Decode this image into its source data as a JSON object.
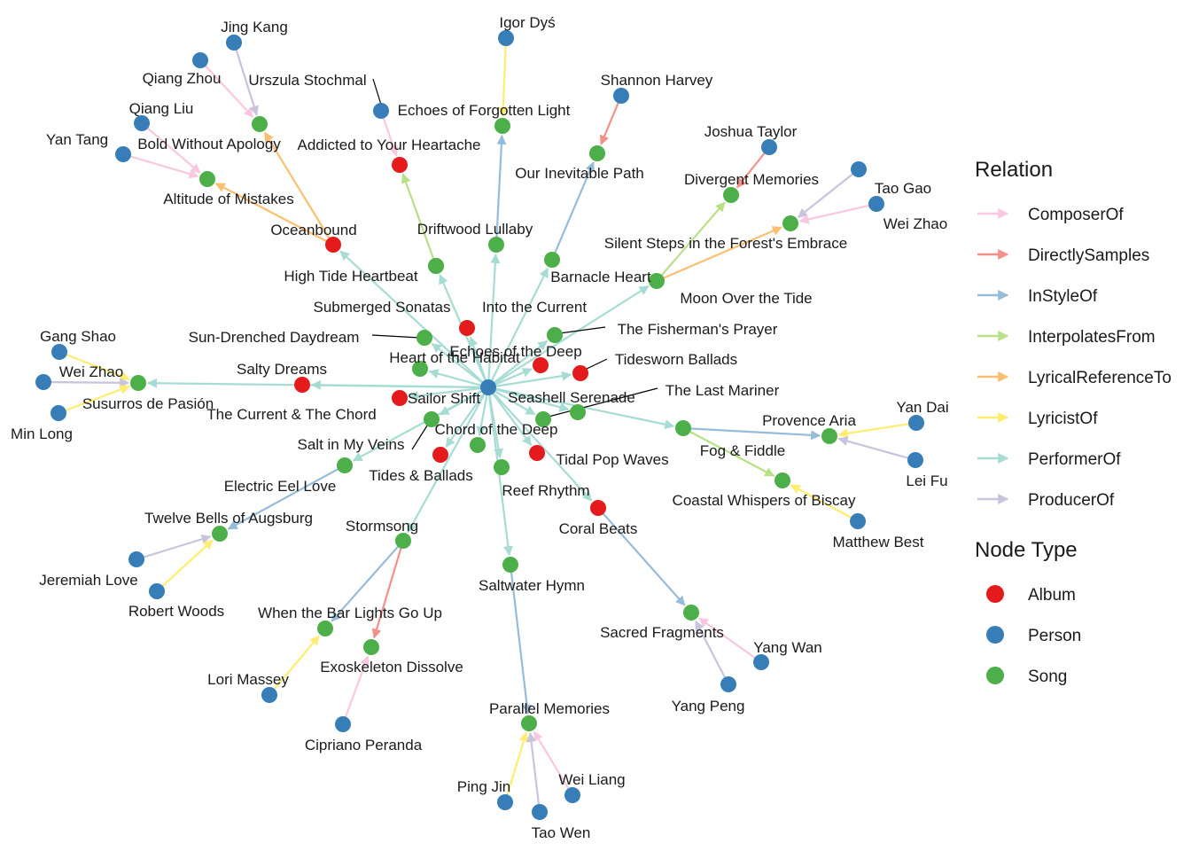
{
  "legend": {
    "relation_title": "Relation",
    "node_type_title": "Node Type",
    "relations": [
      {
        "name": "ComposerOf",
        "color": "#f9c8e0"
      },
      {
        "name": "DirectlySamples",
        "color": "#f4908a"
      },
      {
        "name": "InStyleOf",
        "color": "#97bcd9"
      },
      {
        "name": "InterpolatesFrom",
        "color": "#b8e186"
      },
      {
        "name": "LyricalReferenceTo",
        "color": "#fdbf6f"
      },
      {
        "name": "LyricistOf",
        "color": "#ffed6f"
      },
      {
        "name": "PerformerOf",
        "color": "#a6dcd4"
      },
      {
        "name": "ProducerOf",
        "color": "#c8c4de"
      }
    ],
    "node_types": [
      {
        "name": "Album",
        "color": "#e41a1c"
      },
      {
        "name": "Person",
        "color": "#377eb8"
      },
      {
        "name": "Song",
        "color": "#4daf4a"
      }
    ]
  },
  "nodes": [
    {
      "id": "sailor_shift",
      "label": "Sailor Shift",
      "type": "Person"
    },
    {
      "id": "oceanbound",
      "label": "Oceanbound",
      "type": "Album"
    },
    {
      "id": "altitude",
      "label": "Altitude of Mistakes",
      "type": "Song"
    },
    {
      "id": "bold",
      "label": "Bold Without Apology",
      "type": "Song"
    },
    {
      "id": "yan_tang",
      "label": "Yan Tang",
      "type": "Person"
    },
    {
      "id": "qiang_liu",
      "label": "Qiang Liu",
      "type": "Person"
    },
    {
      "id": "qiang_zhou",
      "label": "Qiang Zhou",
      "type": "Person"
    },
    {
      "id": "jing_kang",
      "label": "Jing Kang",
      "type": "Person"
    },
    {
      "id": "addicted",
      "label": "Addicted to Your Heartache",
      "type": "Album"
    },
    {
      "id": "urszula",
      "label": "Urszula Stochmal",
      "type": "Person"
    },
    {
      "id": "driftwood",
      "label": "Driftwood Lullaby",
      "type": "Song"
    },
    {
      "id": "echoes_forgotten",
      "label": "Echoes of Forgotten Light",
      "type": "Song"
    },
    {
      "id": "igor",
      "label": "Igor Dyś",
      "type": "Person"
    },
    {
      "id": "into_current",
      "label": "Into the Current",
      "type": "Song"
    },
    {
      "id": "our_inevitable",
      "label": "Our Inevitable Path",
      "type": "Song"
    },
    {
      "id": "shannon",
      "label": "Shannon Harvey",
      "type": "Person"
    },
    {
      "id": "barnacle",
      "label": "Barnacle Heart",
      "type": "Song"
    },
    {
      "id": "divergent",
      "label": "Divergent Memories",
      "type": "Song"
    },
    {
      "id": "joshua",
      "label": "Joshua Taylor",
      "type": "Person"
    },
    {
      "id": "moon_tide",
      "label": "Moon Over the Tide",
      "type": "Song"
    },
    {
      "id": "silent_steps",
      "label": "Silent Steps in the Forest's Embrace",
      "type": "Song"
    },
    {
      "id": "tao_gao",
      "label": "Tao Gao",
      "type": "Person"
    },
    {
      "id": "wei_zhao_r",
      "label": "Wei Zhao",
      "type": "Person"
    },
    {
      "id": "high_tide",
      "label": "High Tide Heartbeat",
      "type": "Song"
    },
    {
      "id": "submerged",
      "label": "Submerged Sonatas",
      "type": "Album"
    },
    {
      "id": "sun_drenched",
      "label": "Sun-Drenched Daydream",
      "type": "Song"
    },
    {
      "id": "fishermans",
      "label": "The Fisherman's Prayer",
      "type": "Song"
    },
    {
      "id": "echoes_deep",
      "label": "Echoes of the Deep",
      "type": "Album"
    },
    {
      "id": "heart_habitat",
      "label": "Heart of the Habitat",
      "type": "Song"
    },
    {
      "id": "tidesworn",
      "label": "Tidesworn Ballads",
      "type": "Album"
    },
    {
      "id": "salty_dreams",
      "label": "Salty Dreams",
      "type": "Album"
    },
    {
      "id": "susurros",
      "label": "Susurros de Pasión",
      "type": "Song"
    },
    {
      "id": "gang_shao",
      "label": "Gang Shao",
      "type": "Person"
    },
    {
      "id": "wei_zhao_l",
      "label": "Wei Zhao",
      "type": "Person"
    },
    {
      "id": "min_long",
      "label": "Min Long",
      "type": "Person"
    },
    {
      "id": "current_chord",
      "label": "The Current & The Chord",
      "type": "Album"
    },
    {
      "id": "seashell",
      "label": "Seashell Serenade",
      "type": "Song"
    },
    {
      "id": "last_mariner",
      "label": "The Last Mariner",
      "type": "Song"
    },
    {
      "id": "salt_veins",
      "label": "Salt in My Veins",
      "type": "Song"
    },
    {
      "id": "chord_deep",
      "label": "Chord of the Deep",
      "type": "Song"
    },
    {
      "id": "tides_ballads",
      "label": "Tides & Ballads",
      "type": "Album"
    },
    {
      "id": "tidal_pop",
      "label": "Tidal Pop Waves",
      "type": "Album"
    },
    {
      "id": "electric_eel",
      "label": "Electric Eel Love",
      "type": "Song"
    },
    {
      "id": "reef_rhythm",
      "label": "Reef Rhythm",
      "type": "Song"
    },
    {
      "id": "provence",
      "label": "Provence Aria",
      "type": "Song"
    },
    {
      "id": "yan_dai",
      "label": "Yan Dai",
      "type": "Person"
    },
    {
      "id": "lei_fu",
      "label": "Lei Fu",
      "type": "Person"
    },
    {
      "id": "fog_fiddle",
      "label": "Fog & Fiddle",
      "type": "Song"
    },
    {
      "id": "coastal",
      "label": "Coastal Whispers of Biscay",
      "type": "Song"
    },
    {
      "id": "matthew",
      "label": "Matthew Best",
      "type": "Person"
    },
    {
      "id": "coral_beats",
      "label": "Coral Beats",
      "type": "Album"
    },
    {
      "id": "twelve_bells",
      "label": "Twelve Bells of Augsburg",
      "type": "Song"
    },
    {
      "id": "jeremiah",
      "label": "Jeremiah Love",
      "type": "Person"
    },
    {
      "id": "robert",
      "label": "Robert Woods",
      "type": "Person"
    },
    {
      "id": "stormsong",
      "label": "Stormsong",
      "type": "Song"
    },
    {
      "id": "saltwater",
      "label": "Saltwater Hymn",
      "type": "Song"
    },
    {
      "id": "when_bar",
      "label": "When the Bar Lights Go Up",
      "type": "Song"
    },
    {
      "id": "exoskeleton",
      "label": "Exoskeleton Dissolve",
      "type": "Song"
    },
    {
      "id": "lori",
      "label": "Lori Massey",
      "type": "Person"
    },
    {
      "id": "cipriano",
      "label": "Cipriano Peranda",
      "type": "Person"
    },
    {
      "id": "sacred",
      "label": "Sacred Fragments",
      "type": "Song"
    },
    {
      "id": "yang_wan",
      "label": "Yang Wan",
      "type": "Person"
    },
    {
      "id": "yang_peng",
      "label": "Yang Peng",
      "type": "Person"
    },
    {
      "id": "parallel",
      "label": "Parallel Memories",
      "type": "Song"
    },
    {
      "id": "ping_jin",
      "label": "Ping Jin",
      "type": "Person"
    },
    {
      "id": "wei_liang",
      "label": "Wei Liang",
      "type": "Person"
    },
    {
      "id": "tao_wen",
      "label": "Tao Wen",
      "type": "Person"
    }
  ],
  "edges": [
    {
      "from": "sailor_shift",
      "to": "oceanbound",
      "relation": "PerformerOf"
    },
    {
      "from": "sailor_shift",
      "to": "driftwood",
      "relation": "PerformerOf"
    },
    {
      "from": "sailor_shift",
      "to": "into_current",
      "relation": "PerformerOf"
    },
    {
      "from": "sailor_shift",
      "to": "barnacle",
      "relation": "PerformerOf"
    },
    {
      "from": "sailor_shift",
      "to": "moon_tide",
      "relation": "PerformerOf"
    },
    {
      "from": "sailor_shift",
      "to": "submerged",
      "relation": "PerformerOf"
    },
    {
      "from": "sailor_shift",
      "to": "fishermans",
      "relation": "PerformerOf"
    },
    {
      "from": "sailor_shift",
      "to": "sun_drenched",
      "relation": "PerformerOf"
    },
    {
      "from": "sailor_shift",
      "to": "echoes_deep",
      "relation": "PerformerOf"
    },
    {
      "from": "sailor_shift",
      "to": "heart_habitat",
      "relation": "PerformerOf"
    },
    {
      "from": "sailor_shift",
      "to": "tidesworn",
      "relation": "PerformerOf"
    },
    {
      "from": "sailor_shift",
      "to": "salty_dreams",
      "relation": "PerformerOf"
    },
    {
      "from": "sailor_shift",
      "to": "susurros",
      "relation": "PerformerOf"
    },
    {
      "from": "sailor_shift",
      "to": "current_chord",
      "relation": "PerformerOf"
    },
    {
      "from": "sailor_shift",
      "to": "seashell",
      "relation": "PerformerOf"
    },
    {
      "from": "sailor_shift",
      "to": "last_mariner",
      "relation": "PerformerOf"
    },
    {
      "from": "sailor_shift",
      "to": "salt_veins",
      "relation": "PerformerOf"
    },
    {
      "from": "sailor_shift",
      "to": "chord_deep",
      "relation": "PerformerOf"
    },
    {
      "from": "sailor_shift",
      "to": "tides_ballads",
      "relation": "PerformerOf"
    },
    {
      "from": "sailor_shift",
      "to": "tidal_pop",
      "relation": "PerformerOf"
    },
    {
      "from": "sailor_shift",
      "to": "electric_eel",
      "relation": "PerformerOf"
    },
    {
      "from": "sailor_shift",
      "to": "reef_rhythm",
      "relation": "PerformerOf"
    },
    {
      "from": "sailor_shift",
      "to": "fog_fiddle",
      "relation": "PerformerOf"
    },
    {
      "from": "sailor_shift",
      "to": "coral_beats",
      "relation": "PerformerOf"
    },
    {
      "from": "sailor_shift",
      "to": "stormsong",
      "relation": "PerformerOf"
    },
    {
      "from": "sailor_shift",
      "to": "saltwater",
      "relation": "PerformerOf"
    },
    {
      "from": "oceanbound",
      "to": "altitude",
      "relation": "LyricalReferenceTo"
    },
    {
      "from": "oceanbound",
      "to": "bold",
      "relation": "LyricalReferenceTo"
    },
    {
      "from": "yan_tang",
      "to": "altitude",
      "relation": "ComposerOf"
    },
    {
      "from": "qiang_liu",
      "to": "altitude",
      "relation": "ComposerOf"
    },
    {
      "from": "qiang_zhou",
      "to": "bold",
      "relation": "ComposerOf"
    },
    {
      "from": "jing_kang",
      "to": "bold",
      "relation": "ProducerOf"
    },
    {
      "from": "driftwood",
      "to": "addicted",
      "relation": "InterpolatesFrom"
    },
    {
      "from": "urszula",
      "to": "addicted",
      "relation": "ComposerOf"
    },
    {
      "from": "into_current",
      "to": "echoes_forgotten",
      "relation": "InStyleOf"
    },
    {
      "from": "igor",
      "to": "echoes_forgotten",
      "relation": "LyricistOf"
    },
    {
      "from": "barnacle",
      "to": "our_inevitable",
      "relation": "InStyleOf"
    },
    {
      "from": "shannon",
      "to": "our_inevitable",
      "relation": "DirectlySamples"
    },
    {
      "from": "moon_tide",
      "to": "divergent",
      "relation": "InterpolatesFrom"
    },
    {
      "from": "moon_tide",
      "to": "silent_steps",
      "relation": "LyricalReferenceTo"
    },
    {
      "from": "joshua",
      "to": "divergent",
      "relation": "DirectlySamples"
    },
    {
      "from": "tao_gao",
      "to": "silent_steps",
      "relation": "ProducerOf"
    },
    {
      "from": "wei_zhao_r",
      "to": "silent_steps",
      "relation": "ComposerOf"
    },
    {
      "from": "gang_shao",
      "to": "susurros",
      "relation": "LyricistOf"
    },
    {
      "from": "wei_zhao_l",
      "to": "susurros",
      "relation": "ProducerOf"
    },
    {
      "from": "min_long",
      "to": "susurros",
      "relation": "LyricistOf"
    },
    {
      "from": "fog_fiddle",
      "to": "provence",
      "relation": "InStyleOf"
    },
    {
      "from": "fog_fiddle",
      "to": "coastal",
      "relation": "InterpolatesFrom"
    },
    {
      "from": "yan_dai",
      "to": "provence",
      "relation": "LyricistOf"
    },
    {
      "from": "lei_fu",
      "to": "provence",
      "relation": "ProducerOf"
    },
    {
      "from": "matthew",
      "to": "coastal",
      "relation": "LyricistOf"
    },
    {
      "from": "electric_eel",
      "to": "twelve_bells",
      "relation": "InStyleOf"
    },
    {
      "from": "jeremiah",
      "to": "twelve_bells",
      "relation": "ProducerOf"
    },
    {
      "from": "robert",
      "to": "twelve_bells",
      "relation": "LyricistOf"
    },
    {
      "from": "stormsong",
      "to": "when_bar",
      "relation": "InStyleOf"
    },
    {
      "from": "stormsong",
      "to": "exoskeleton",
      "relation": "DirectlySamples"
    },
    {
      "from": "lori",
      "to": "when_bar",
      "relation": "LyricistOf"
    },
    {
      "from": "cipriano",
      "to": "exoskeleton",
      "relation": "ComposerOf"
    },
    {
      "from": "coral_beats",
      "to": "sacred",
      "relation": "InStyleOf"
    },
    {
      "from": "yang_wan",
      "to": "sacred",
      "relation": "ComposerOf"
    },
    {
      "from": "yang_peng",
      "to": "sacred",
      "relation": "ProducerOf"
    },
    {
      "from": "saltwater",
      "to": "parallel",
      "relation": "InStyleOf"
    },
    {
      "from": "ping_jin",
      "to": "parallel",
      "relation": "LyricistOf"
    },
    {
      "from": "wei_liang",
      "to": "parallel",
      "relation": "ComposerOf"
    },
    {
      "from": "tao_wen",
      "to": "parallel",
      "relation": "ProducerOf"
    }
  ]
}
